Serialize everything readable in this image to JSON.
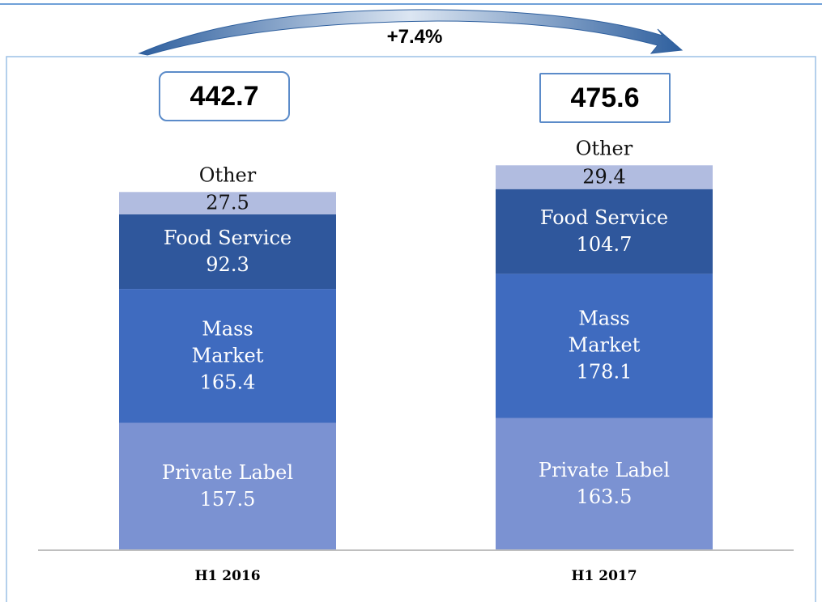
{
  "chart_data": {
    "type": "stacked_bar",
    "annotation": "+7.4%",
    "categories": [
      "H1 2016",
      "H1 2017"
    ],
    "totals": [
      442.7,
      475.6
    ],
    "series": [
      {
        "name": "Private Label",
        "color": "#7b92d2",
        "values": [
          157.5,
          163.5
        ]
      },
      {
        "name": "Mass Market",
        "color": "#3f6bbf",
        "values": [
          165.4,
          178.1
        ]
      },
      {
        "name": "Food Service",
        "color": "#2f579c",
        "values": [
          92.3,
          104.7
        ]
      },
      {
        "name": "Other",
        "color": "#b1bce0",
        "values": [
          27.5,
          29.4
        ]
      }
    ]
  }
}
